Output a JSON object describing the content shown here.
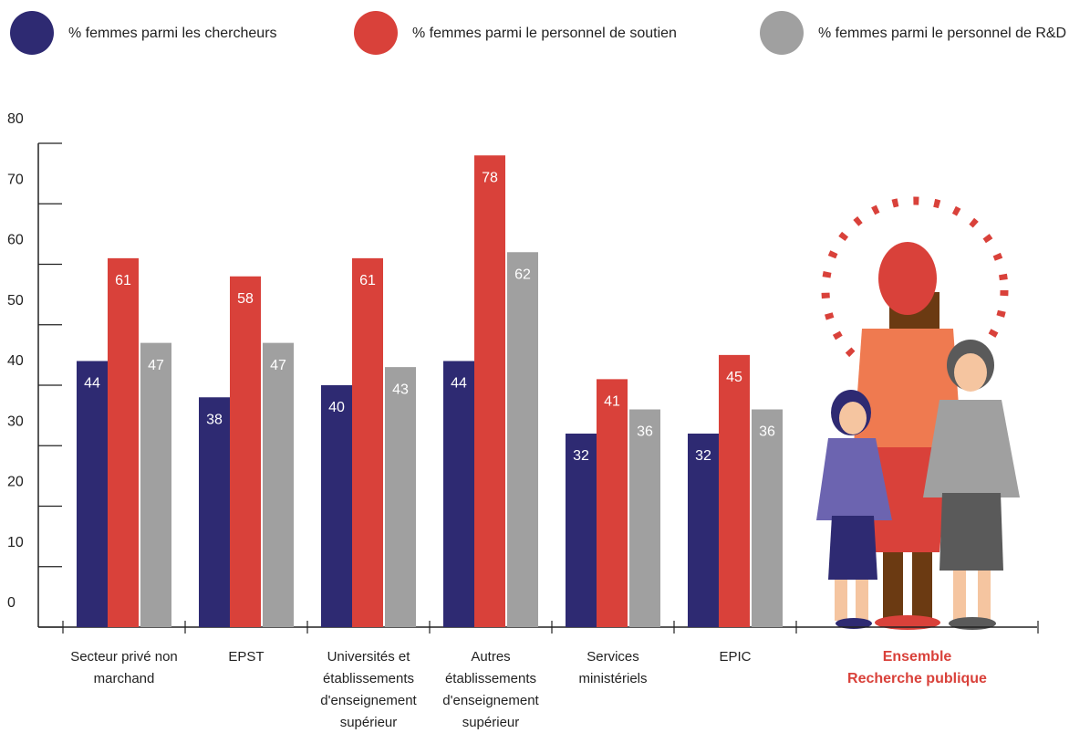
{
  "chart_data": {
    "type": "bar",
    "categories": [
      "Secteur privé non marchand",
      "EPST",
      "Universités et établissements d'enseignement supérieur",
      "Autres établissements d'enseignement supérieur",
      "Services ministériels",
      "EPIC",
      "Ensemble Recherche publique"
    ],
    "series": [
      {
        "name": "% femmes parmi les chercheurs",
        "color": "#2e2a72",
        "values": [
          44,
          38,
          40,
          44,
          32,
          32,
          null
        ]
      },
      {
        "name": "% femmes parmi le personnel de soutien",
        "color": "#d9413a",
        "values": [
          61,
          58,
          61,
          78,
          41,
          45,
          null
        ]
      },
      {
        "name": "% femmes parmi le personnel de R&D",
        "color": "#a0a0a0",
        "values": [
          47,
          47,
          43,
          62,
          36,
          36,
          null
        ]
      }
    ],
    "ylim": [
      0,
      80
    ],
    "yticks": [
      0,
      10,
      20,
      30,
      40,
      50,
      60,
      70,
      80
    ]
  }
}
